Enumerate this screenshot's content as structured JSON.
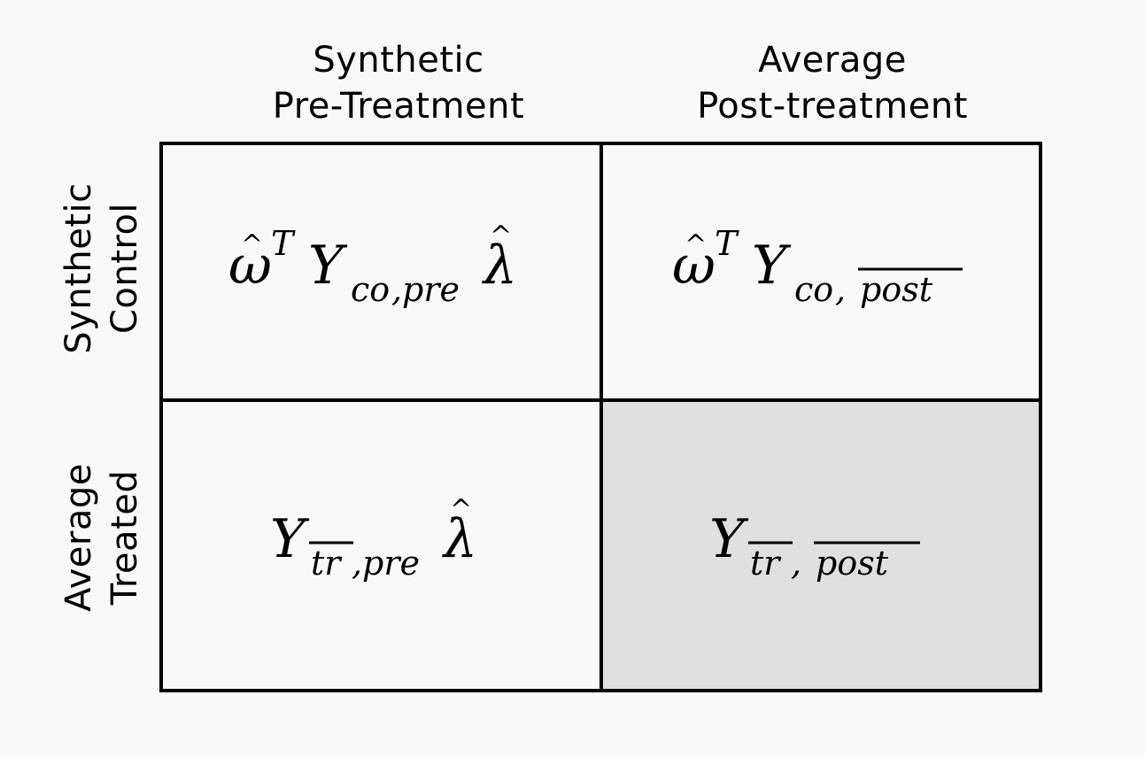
{
  "columns": [
    {
      "line1": "Synthetic",
      "line2": "Pre-Treatment"
    },
    {
      "line1": "Average",
      "line2": "Post-treatment"
    }
  ],
  "rows": [
    {
      "line1": "Synthetic",
      "line2": "Control"
    },
    {
      "line1": "Average",
      "line2": "Treated"
    }
  ],
  "cells": {
    "r1c1": {
      "formula": "ω̂ᵀ Y_{co,pre} λ̂",
      "omega": "ω",
      "sup": "T",
      "Y": "Y",
      "sub1": "co",
      "comma": ",",
      "sub2": "pre",
      "lambda": "λ"
    },
    "r1c2": {
      "formula": "ω̂ᵀ Y_{co,post̄}",
      "omega": "ω",
      "sup": "T",
      "Y": "Y",
      "sub1": "co",
      "comma": ",",
      "sub2": "post"
    },
    "r2c1": {
      "formula": "Y_{tr̄,pre} λ̂",
      "Y": "Y",
      "sub1": "tr",
      "comma": ",",
      "sub2": "pre",
      "lambda": "λ"
    },
    "r2c2": {
      "formula": "Y_{tr̄,post̄}",
      "Y": "Y",
      "sub1": "tr",
      "comma": ",",
      "sub2": "post",
      "highlight": true
    }
  }
}
